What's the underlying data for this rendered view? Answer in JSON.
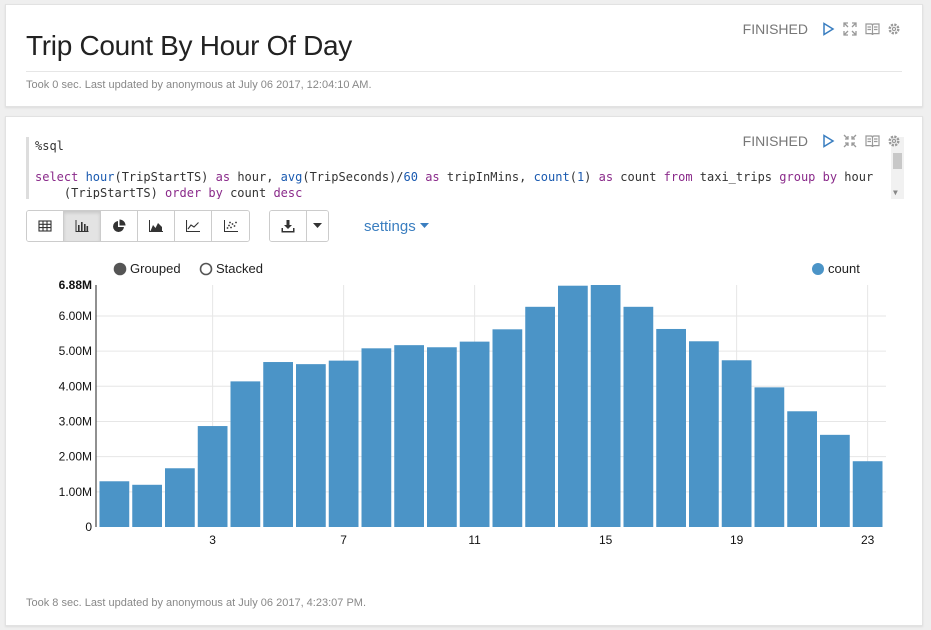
{
  "paragraph1": {
    "title": "Trip Count By Hour Of Day",
    "status": "FINISHED",
    "footer": "Took 0 sec. Last updated by anonymous at July 06 2017, 12:04:10 AM."
  },
  "paragraph2": {
    "status": "FINISHED",
    "editor": {
      "line1": "%sql",
      "line2": [
        {
          "t": "select ",
          "c": "kw"
        },
        {
          "t": "hour",
          "c": "fn"
        },
        {
          "t": "(TripStartTS) ",
          "c": ""
        },
        {
          "t": "as",
          "c": "kw"
        },
        {
          "t": " hour, ",
          "c": ""
        },
        {
          "t": "avg",
          "c": "fn"
        },
        {
          "t": "(TripSeconds)/",
          "c": ""
        },
        {
          "t": "60",
          "c": "num"
        },
        {
          "t": " ",
          "c": ""
        },
        {
          "t": "as",
          "c": "kw"
        },
        {
          "t": " tripInMins, ",
          "c": ""
        },
        {
          "t": "count",
          "c": "fn"
        },
        {
          "t": "(",
          "c": ""
        },
        {
          "t": "1",
          "c": "num"
        },
        {
          "t": ") ",
          "c": ""
        },
        {
          "t": "as",
          "c": "kw"
        },
        {
          "t": " count ",
          "c": ""
        },
        {
          "t": "from",
          "c": "kw"
        },
        {
          "t": " taxi_trips ",
          "c": ""
        },
        {
          "t": "group",
          "c": "kw"
        },
        {
          "t": " ",
          "c": ""
        },
        {
          "t": "by",
          "c": "kw"
        },
        {
          "t": " hour",
          "c": ""
        }
      ],
      "line3": [
        {
          "t": "    (TripStartTS) ",
          "c": ""
        },
        {
          "t": "order",
          "c": "kw"
        },
        {
          "t": " ",
          "c": ""
        },
        {
          "t": "by",
          "c": "kw"
        },
        {
          "t": " count ",
          "c": ""
        },
        {
          "t": "desc",
          "c": "kw"
        }
      ]
    },
    "toolbar": {
      "settings_label": "settings"
    },
    "footer": "Took 8 sec. Last updated by anonymous at July 06 2017, 4:23:07 PM."
  },
  "chart_data": {
    "type": "bar",
    "legend_modes": [
      "Grouped",
      "Stacked"
    ],
    "selected_mode": "Grouped",
    "series": [
      {
        "name": "count",
        "color": "#4b94c7",
        "values": [
          1.3,
          1.2,
          1.67,
          2.87,
          4.14,
          4.69,
          4.63,
          4.73,
          5.08,
          5.17,
          5.11,
          5.27,
          5.62,
          6.26,
          6.86,
          6.88,
          6.26,
          5.63,
          5.28,
          4.74,
          3.97,
          3.29,
          2.62,
          1.87
        ]
      }
    ],
    "x": [
      0,
      1,
      2,
      3,
      4,
      5,
      6,
      7,
      8,
      9,
      10,
      11,
      12,
      13,
      14,
      15,
      16,
      17,
      18,
      19,
      20,
      21,
      22,
      23
    ],
    "x_tick_labels": [
      "3",
      "7",
      "11",
      "15",
      "19",
      "23"
    ],
    "x_tick_values": [
      3,
      7,
      11,
      15,
      19,
      23
    ],
    "y_tick_labels": [
      "0",
      "1.00M",
      "2.00M",
      "3.00M",
      "4.00M",
      "5.00M",
      "6.00M",
      "6.88M"
    ],
    "y_tick_values": [
      0,
      1,
      2,
      3,
      4,
      5,
      6,
      6.88
    ],
    "ylim": [
      0,
      6.88
    ],
    "unit": "millions",
    "grid": true,
    "legend_position": "top-right"
  }
}
